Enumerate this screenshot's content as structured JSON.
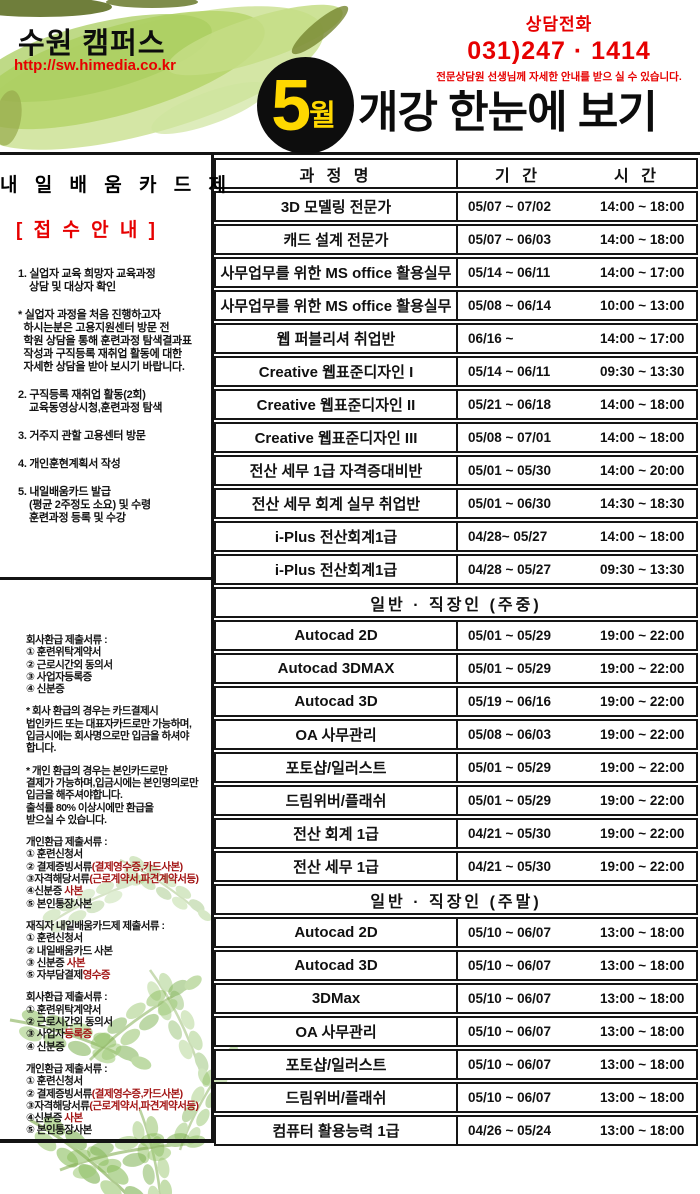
{
  "colors": {
    "accent_red": "#e60000",
    "dark_red": "#a31515",
    "badge_black": "#0d0d0d",
    "badge_yellow": "#ffd800",
    "brush_green": "#b7d56e",
    "line_black": "#141414"
  },
  "header": {
    "campus_name": "수원 캠퍼스",
    "website": "http://sw.himedia.co.kr",
    "phone_label": "상담전화",
    "phone_number": "031)247 · 1414",
    "phone_note": "전문상담원 선생님께 자세한 안내를 받으 실 수 있습니다.",
    "badge": {
      "month": "5",
      "suffix": "월"
    },
    "title": "개강 한눈에 보기"
  },
  "sidebar": {
    "card_title": "내 일 배 움 카 드 제",
    "notice_title": "[ 접 수 안 내 ]",
    "paragraphs": [
      [
        "1. 실업자 교육 희망자 교육과정",
        "    상담 및 대상자 확인"
      ],
      [
        "* 실업자 과정을 처음 진행하고자",
        "  하시는분은 고용지원센터 방문 전",
        "  학원 상담을 통해 훈련과정 탐색결과표",
        "  작성과 구직등록 재취업 활동에 대한",
        "  자세한 상담을 받아 보시기 바랍니다."
      ],
      [
        "2. 구직등록 재취업 활동(2회)",
        "    교육동영상시청,훈련과정 탐색"
      ],
      [
        "3. 거주지 관할 고용센터 방문"
      ],
      [
        "4. 개인훈현계획서 작성"
      ],
      [
        "5. 내일배움카드 발급",
        "    (평균 2주정도 소요) 및 수령",
        "    훈련과정 등록 및 수강"
      ]
    ],
    "document_blocks": [
      [
        {
          "t": "회사환급 제출서류 :"
        },
        {
          "t": "① 훈련위탁계약서"
        },
        {
          "t": "② 근로시간외 동의서"
        },
        {
          "t": "③ 사업자등록증"
        },
        {
          "t": "④ 신분증"
        }
      ],
      [
        {
          "t": "* 회사 환급의 경우는 카드결제시"
        },
        {
          "t": "법인카드 또는 대표자카드로만 가능하며,"
        },
        {
          "t": "입금시에는 회사명으로만 입금을 하셔야"
        },
        {
          "t": "합니다."
        }
      ],
      [
        {
          "t": "* 개인 환급의 경우는 본인카드로만"
        },
        {
          "t": "결제가 가능하며,입금시에는 본인명의로만"
        },
        {
          "t": "입금을 해주셔야합니다."
        },
        {
          "t": "출석률 80% 이상시에만 환급을"
        },
        {
          "t": "받으실 수 있습니다."
        }
      ],
      [
        {
          "t": "개인환급 제출서류 :"
        },
        {
          "t": "① 훈련신청서"
        },
        {
          "t": "② 결제증빙서류",
          "r": "(결제영수증,카드사본)"
        },
        {
          "t": "③자격해당서류",
          "r": "(근로계약서,파견계약서등)"
        },
        {
          "t": "④신분증 ",
          "r": "사본"
        },
        {
          "t": "⑤ 본인통장사본"
        }
      ],
      [
        {
          "t": "재직자 내일배움카드제 제출서류 :"
        },
        {
          "t": "① 훈련신청서"
        },
        {
          "t": "② 내일배움카드 사본"
        },
        {
          "t": "③ 신분증 ",
          "r": "사본"
        },
        {
          "t": "⑤ 자부담결제",
          "r": "영수증"
        }
      ],
      [
        {
          "t": "회사환급 제출서류 :"
        },
        {
          "t": "① 훈련위탁계약서"
        },
        {
          "t": "② 근로시간외 동의서"
        },
        {
          "t": "③ 사업자",
          "r": "등록증"
        },
        {
          "t": "④ 신분증"
        }
      ],
      [
        {
          "t": "개인환급 제출서류 :"
        },
        {
          "t": "① 훈련신청서"
        },
        {
          "t": "② 결제증빙서류",
          "r": "(결제영수증,카드사본)"
        },
        {
          "t": "③자격해당서류",
          "r": "(근로계약서,파견계약서등)"
        },
        {
          "t": "④신분증 ",
          "r": "사본"
        },
        {
          "t": "⑤ 본인통장사본"
        }
      ]
    ]
  },
  "table": {
    "columns": [
      "과 정 명",
      "기 간",
      "시 간"
    ],
    "sections": [
      {
        "header": "",
        "rows": [
          [
            "3D 모델링 전문가",
            "05/07 ~ 07/02",
            "14:00 ~ 18:00"
          ],
          [
            "캐드 설계 전문가",
            "05/07 ~ 06/03",
            "14:00 ~ 18:00"
          ],
          [
            "사무업무를 위한 MS office 활용실무",
            "05/14 ~ 06/11",
            "14:00 ~ 17:00"
          ],
          [
            "사무업무를 위한 MS office 활용실무",
            "05/08 ~ 06/14",
            "10:00 ~ 13:00"
          ],
          [
            "웹 퍼블리셔 취업반",
            "06/16 ~",
            "14:00 ~ 17:00"
          ],
          [
            "Creative 웹표준디자인 I",
            "05/14 ~ 06/11",
            "09:30 ~ 13:30"
          ],
          [
            "Creative 웹표준디자인 II",
            "05/21 ~ 06/18",
            "14:00 ~ 18:00"
          ],
          [
            "Creative 웹표준디자인 III",
            "05/08 ~ 07/01",
            "14:00 ~ 18:00"
          ],
          [
            "전산 세무 1급 자격증대비반",
            "05/01 ~ 05/30",
            "14:00 ~ 20:00"
          ],
          [
            "전산 세무 회계 실무 취업반",
            "05/01 ~ 06/30",
            "14:30 ~ 18:30"
          ],
          [
            "i-Plus 전산회계1급",
            "04/28~ 05/27",
            "14:00 ~ 18:00"
          ],
          [
            "i-Plus 전산회계1급",
            "04/28 ~ 05/27",
            "09:30 ~ 13:30"
          ]
        ]
      },
      {
        "header": "일반 · 직장인 (주중)",
        "rows": [
          [
            "Autocad 2D",
            "05/01 ~ 05/29",
            "19:00 ~ 22:00"
          ],
          [
            "Autocad 3DMAX",
            "05/01 ~ 05/29",
            "19:00 ~ 22:00"
          ],
          [
            "Autocad 3D",
            "05/19 ~ 06/16",
            "19:00 ~ 22:00"
          ],
          [
            "OA 사무관리",
            "05/08 ~ 06/03",
            "19:00 ~ 22:00"
          ],
          [
            "포토샵/일러스트",
            "05/01 ~ 05/29",
            "19:00 ~ 22:00"
          ],
          [
            "드림위버/플래쉬",
            "05/01 ~ 05/29",
            "19:00 ~ 22:00"
          ],
          [
            "전산 회계 1급",
            "04/21 ~ 05/30",
            "19:00 ~ 22:00"
          ],
          [
            "전산 세무 1급",
            "04/21 ~ 05/30",
            "19:00 ~ 22:00"
          ]
        ]
      },
      {
        "header": "일반 · 직장인 (주말)",
        "rows": [
          [
            "Autocad 2D",
            "05/10 ~ 06/07",
            "13:00 ~ 18:00"
          ],
          [
            "Autocad 3D",
            "05/10 ~ 06/07",
            "13:00 ~ 18:00"
          ],
          [
            "3DMax",
            "05/10 ~ 06/07",
            "13:00 ~ 18:00"
          ],
          [
            "OA 사무관리",
            "05/10 ~ 06/07",
            "13:00 ~ 18:00"
          ],
          [
            "포토샵/일러스트",
            "05/10 ~ 06/07",
            "13:00 ~ 18:00"
          ],
          [
            "드림위버/플래쉬",
            "05/10 ~ 06/07",
            "13:00 ~ 18:00"
          ],
          [
            "컴퓨터 활용능력 1급",
            "04/26 ~ 05/24",
            "13:00 ~ 18:00"
          ]
        ]
      }
    ]
  }
}
